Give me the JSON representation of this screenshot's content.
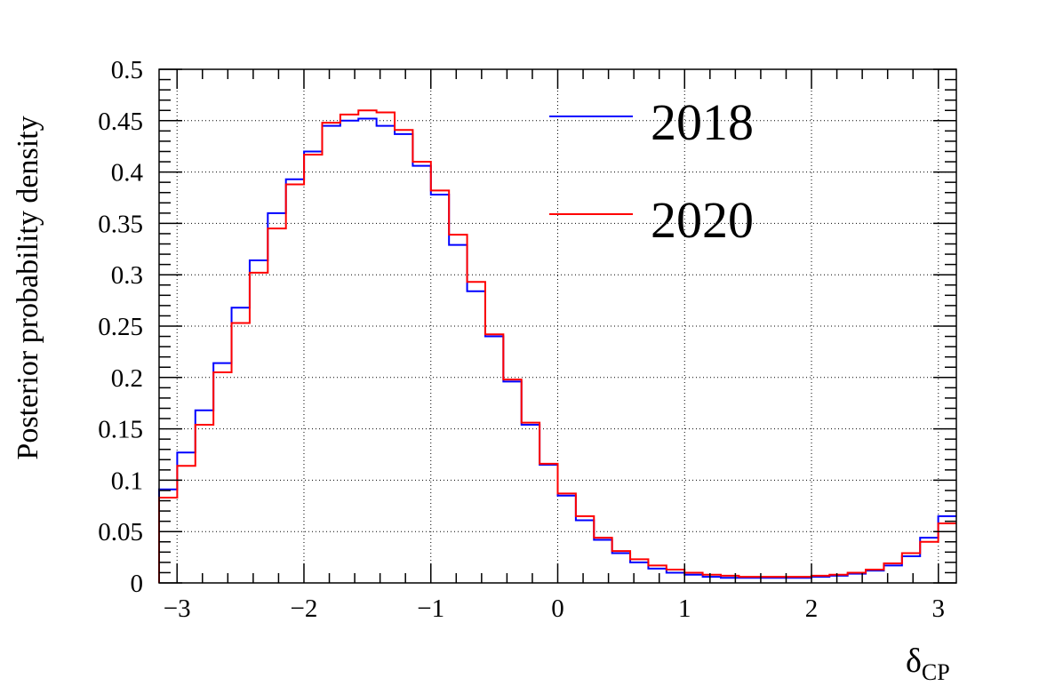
{
  "chart_data": {
    "type": "step-histogram",
    "title": "",
    "xlabel_main": "δ",
    "xlabel_sub": "CP",
    "ylabel": "Posterior probability density",
    "xlim": [
      -3.14159,
      3.14159
    ],
    "ylim": [
      0,
      0.5
    ],
    "grid": true,
    "legend_position": "top-right",
    "x_ticks": [
      -3,
      -2,
      -1,
      0,
      1,
      2,
      3
    ],
    "x_tick_labels": [
      "−3",
      "−2",
      "−1",
      "0",
      "1",
      "2",
      "3"
    ],
    "y_ticks": [
      0,
      0.05,
      0.1,
      0.15,
      0.2,
      0.25,
      0.3,
      0.35,
      0.4,
      0.45,
      0.5
    ],
    "y_tick_labels": [
      "0",
      "0.05",
      "0.1",
      "0.15",
      "0.2",
      "0.25",
      "0.3",
      "0.35",
      "0.4",
      "0.45",
      "0.5"
    ],
    "bins": 44,
    "series": [
      {
        "name": "2018",
        "color": "#0000ff",
        "values": [
          0.091,
          0.127,
          0.168,
          0.214,
          0.268,
          0.314,
          0.36,
          0.393,
          0.42,
          0.445,
          0.45,
          0.452,
          0.445,
          0.437,
          0.406,
          0.378,
          0.329,
          0.284,
          0.24,
          0.196,
          0.154,
          0.115,
          0.085,
          0.061,
          0.042,
          0.029,
          0.02,
          0.014,
          0.01,
          0.008,
          0.006,
          0.005,
          0.005,
          0.005,
          0.005,
          0.005,
          0.006,
          0.007,
          0.009,
          0.012,
          0.017,
          0.026,
          0.044,
          0.065
        ]
      },
      {
        "name": "2020",
        "color": "#ff0000",
        "values": [
          0.083,
          0.114,
          0.154,
          0.205,
          0.253,
          0.302,
          0.345,
          0.388,
          0.417,
          0.448,
          0.456,
          0.46,
          0.458,
          0.441,
          0.41,
          0.382,
          0.339,
          0.293,
          0.242,
          0.198,
          0.156,
          0.116,
          0.087,
          0.065,
          0.044,
          0.031,
          0.023,
          0.017,
          0.013,
          0.01,
          0.008,
          0.007,
          0.006,
          0.006,
          0.006,
          0.006,
          0.007,
          0.008,
          0.01,
          0.013,
          0.019,
          0.029,
          0.04,
          0.058
        ]
      }
    ]
  }
}
